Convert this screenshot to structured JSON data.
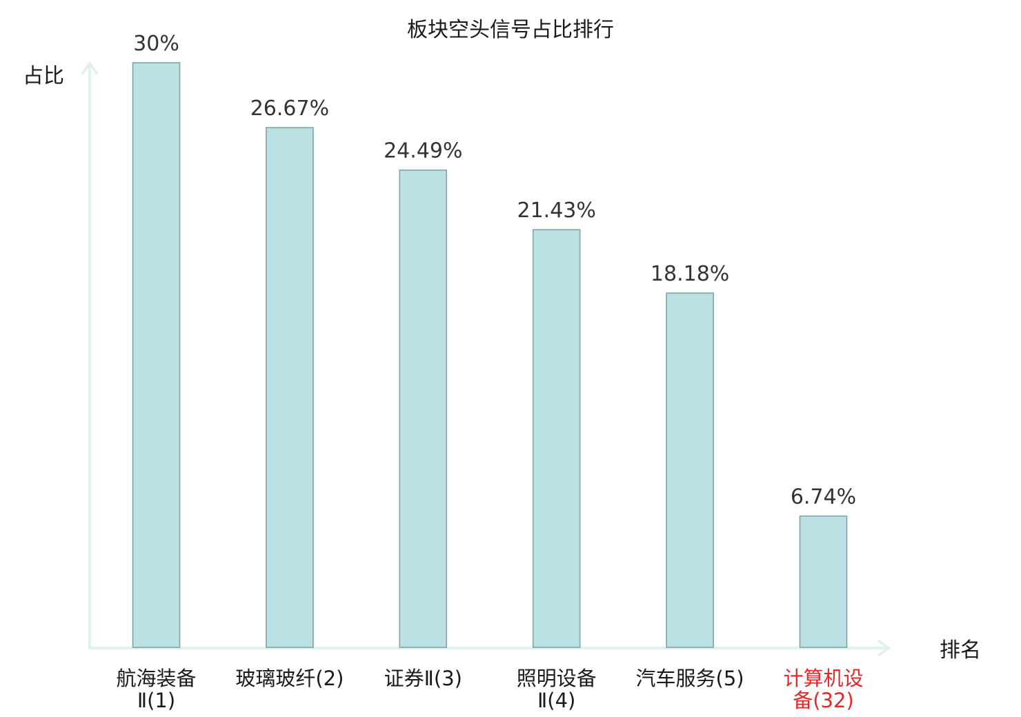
{
  "chart_data": {
    "type": "bar",
    "title": "板块空头信号占比排行",
    "ylabel": "占比",
    "xlabel": "排名",
    "categories": [
      [
        "航海装备",
        "Ⅱ(1)"
      ],
      [
        "玻璃玻纤(2)"
      ],
      [
        "证券Ⅱ(3)"
      ],
      [
        "照明设备",
        "Ⅱ(4)"
      ],
      [
        "汽车服务(5)"
      ],
      [
        "计算机设",
        "备(32)"
      ]
    ],
    "values": [
      30,
      26.67,
      24.49,
      21.43,
      18.18,
      6.74
    ],
    "value_labels": [
      "30%",
      "26.67%",
      "24.49%",
      "21.43%",
      "18.18%",
      "6.74%"
    ],
    "highlight_index": 5,
    "ylim": [
      0,
      30
    ],
    "grid": false,
    "colors": {
      "bar_fill": "#bce1e3",
      "bar_stroke": "#7fa3a6",
      "axis": "#dff2ef",
      "highlight_text": "#e8262a",
      "text": "#1a1a1a"
    }
  }
}
